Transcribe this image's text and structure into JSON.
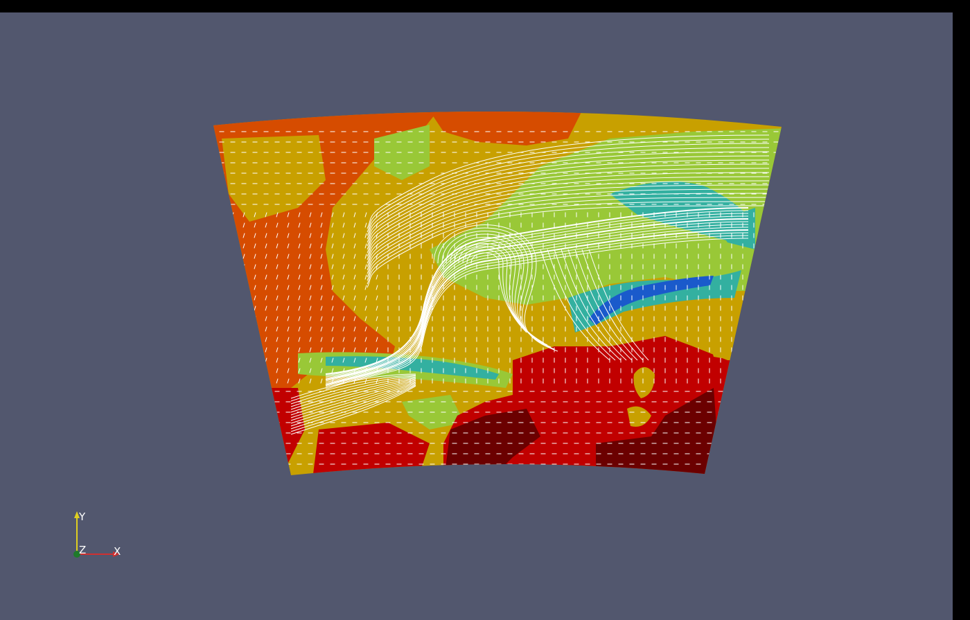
{
  "viewport": {
    "background": "#52576e",
    "border_color": "#000000"
  },
  "field": {
    "palette": [
      "#6b0000",
      "#c10000",
      "#d64c00",
      "#c8a000",
      "#99c837",
      "#33b0a0",
      "#1a5acb"
    ],
    "glyph_color": "#ffffff",
    "streamline_color": "#ffffff"
  },
  "orientation_axes": {
    "y_label": "Y",
    "z_label": "Z",
    "x_label": "X",
    "y_color": "#e0d020",
    "x_color": "#d03030",
    "z_color": "#1f7a2a"
  }
}
